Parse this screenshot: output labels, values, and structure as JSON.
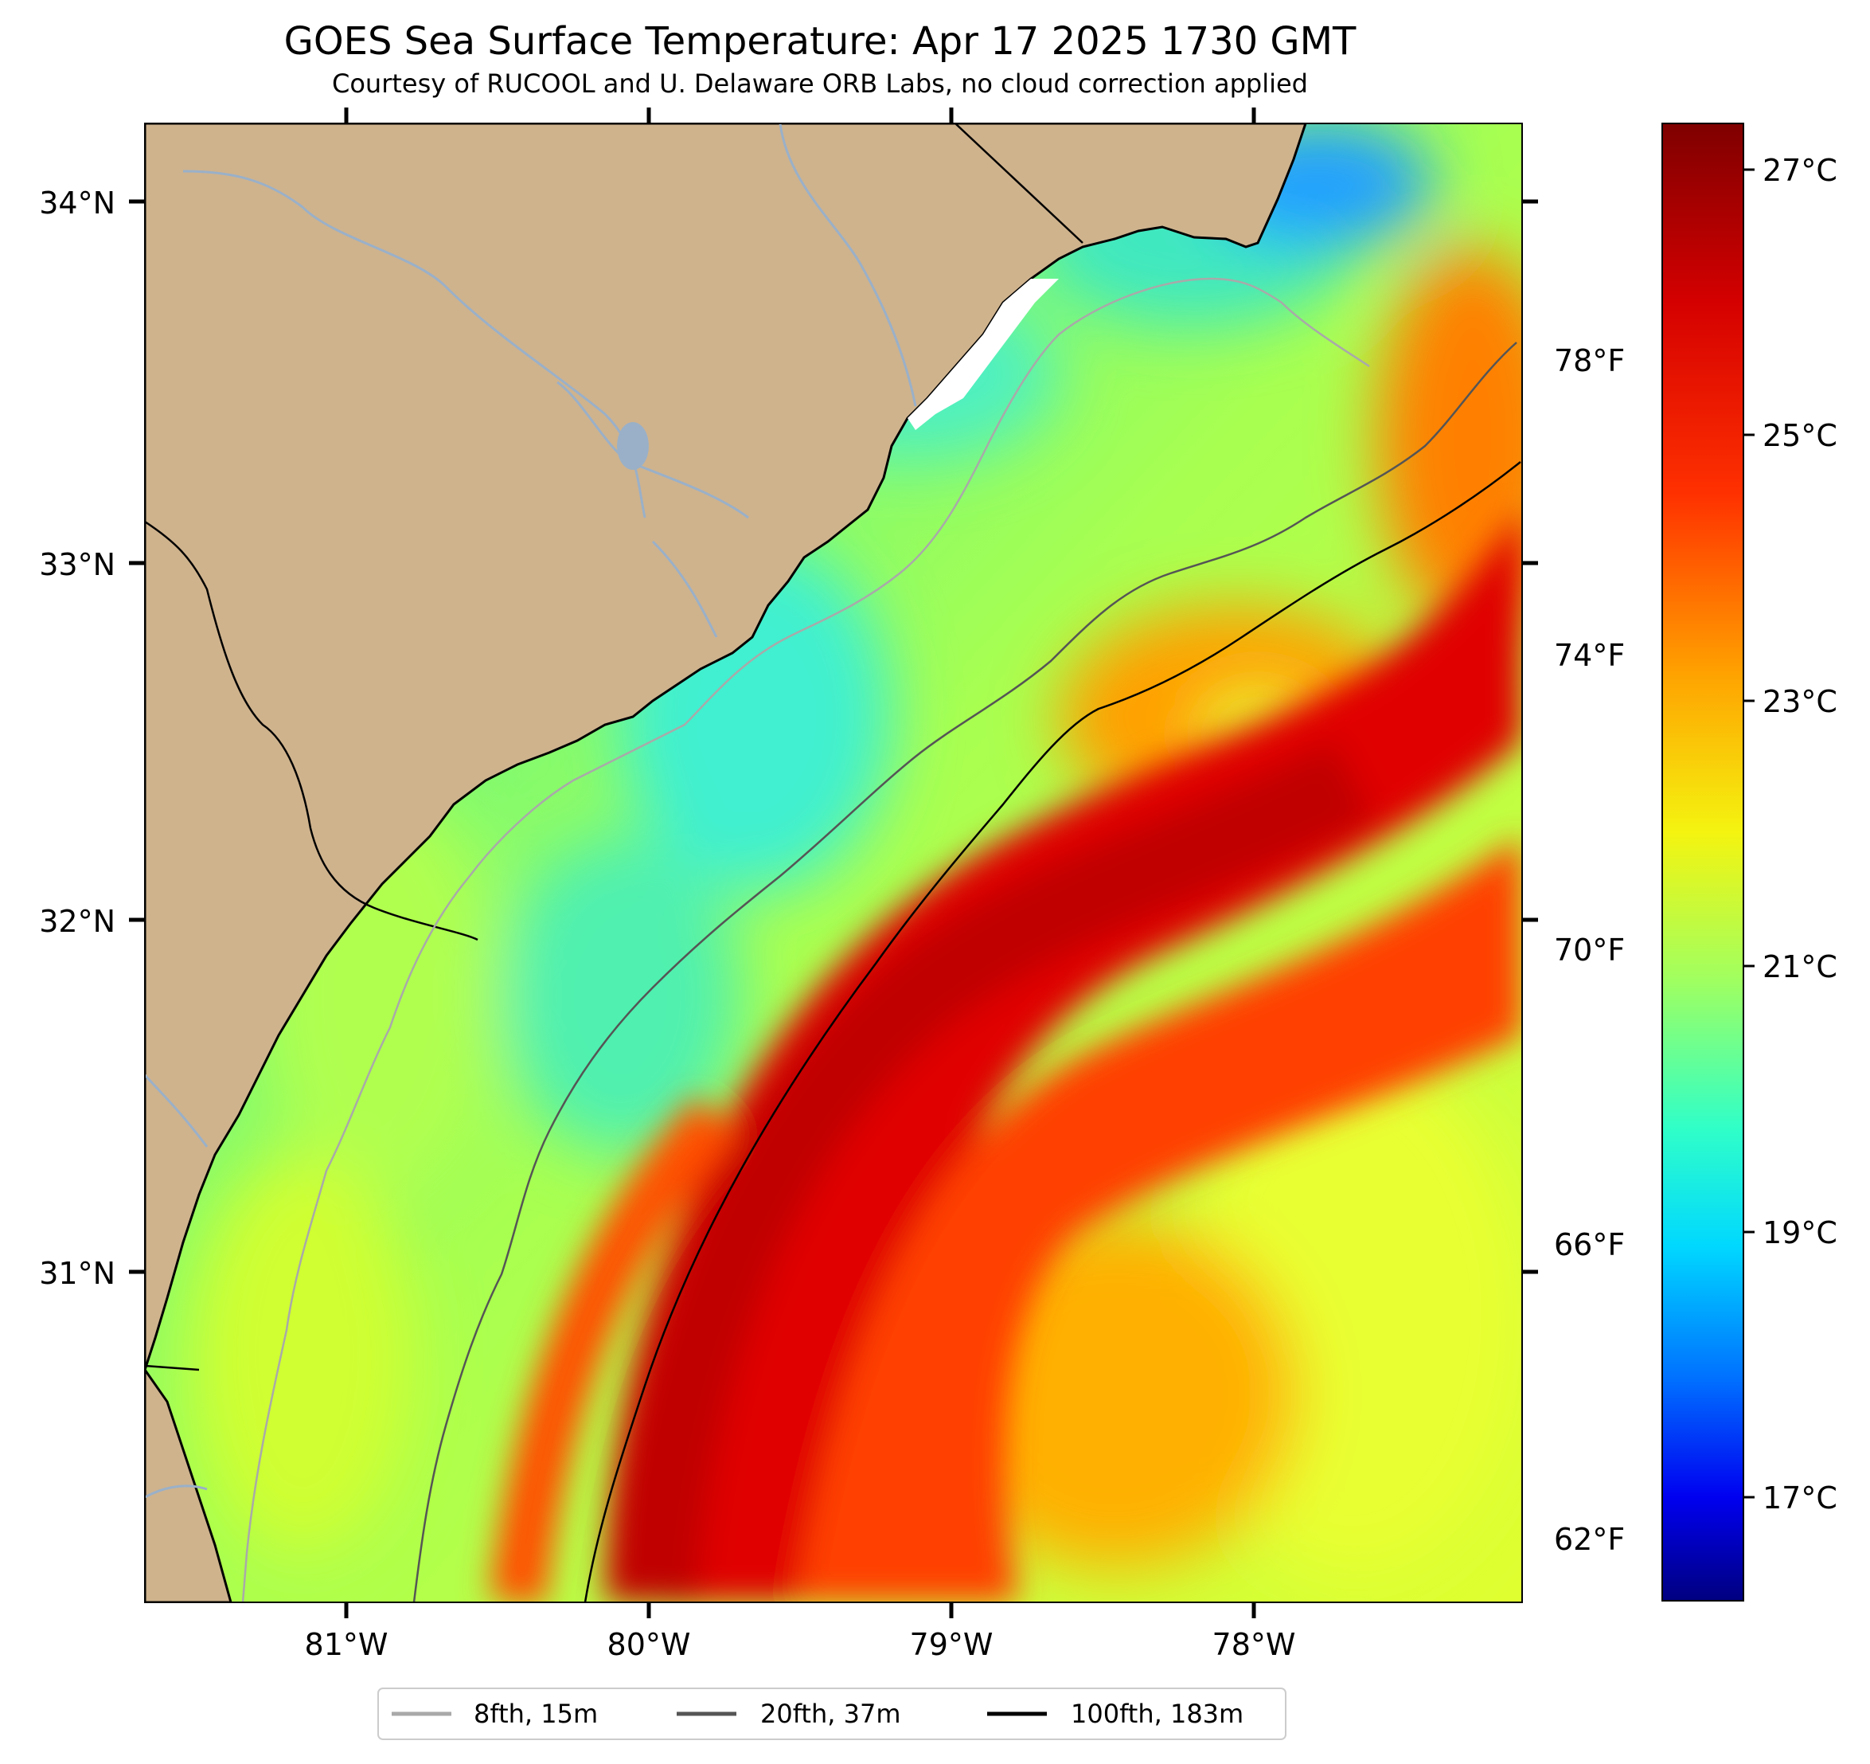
{
  "title": "GOES Sea Surface Temperature: Apr 17 2025 1730 GMT",
  "subtitle": "Courtesy of RUCOOL and U. Delaware ORB Labs, no cloud correction applied",
  "map": {
    "lat_labels": [
      "34°N",
      "33°N",
      "32°N",
      "31°N"
    ],
    "lon_labels": [
      "81°W",
      "80°W",
      "79°W",
      "78°W"
    ],
    "land_color": "#cfb38d",
    "coast_color": "#000000"
  },
  "temp_f_labels": [
    "78°F",
    "74°F",
    "70°F",
    "66°F",
    "62°F"
  ],
  "colorbar": {
    "labels_c": [
      "27°C",
      "25°C",
      "23°C",
      "21°C",
      "19°C",
      "17°C"
    ],
    "colors": [
      "#7f0000",
      "#ff0000",
      "#ff8000",
      "#ffff00",
      "#80ff80",
      "#00ffff",
      "#0080ff",
      "#0000ff",
      "#000080"
    ]
  },
  "legend": {
    "items": [
      {
        "label": "8fth, 15m",
        "color": "#a9a9a9"
      },
      {
        "label": "20fth, 37m",
        "color": "#555555"
      },
      {
        "label": "100fth, 183m",
        "color": "#000000"
      }
    ]
  }
}
